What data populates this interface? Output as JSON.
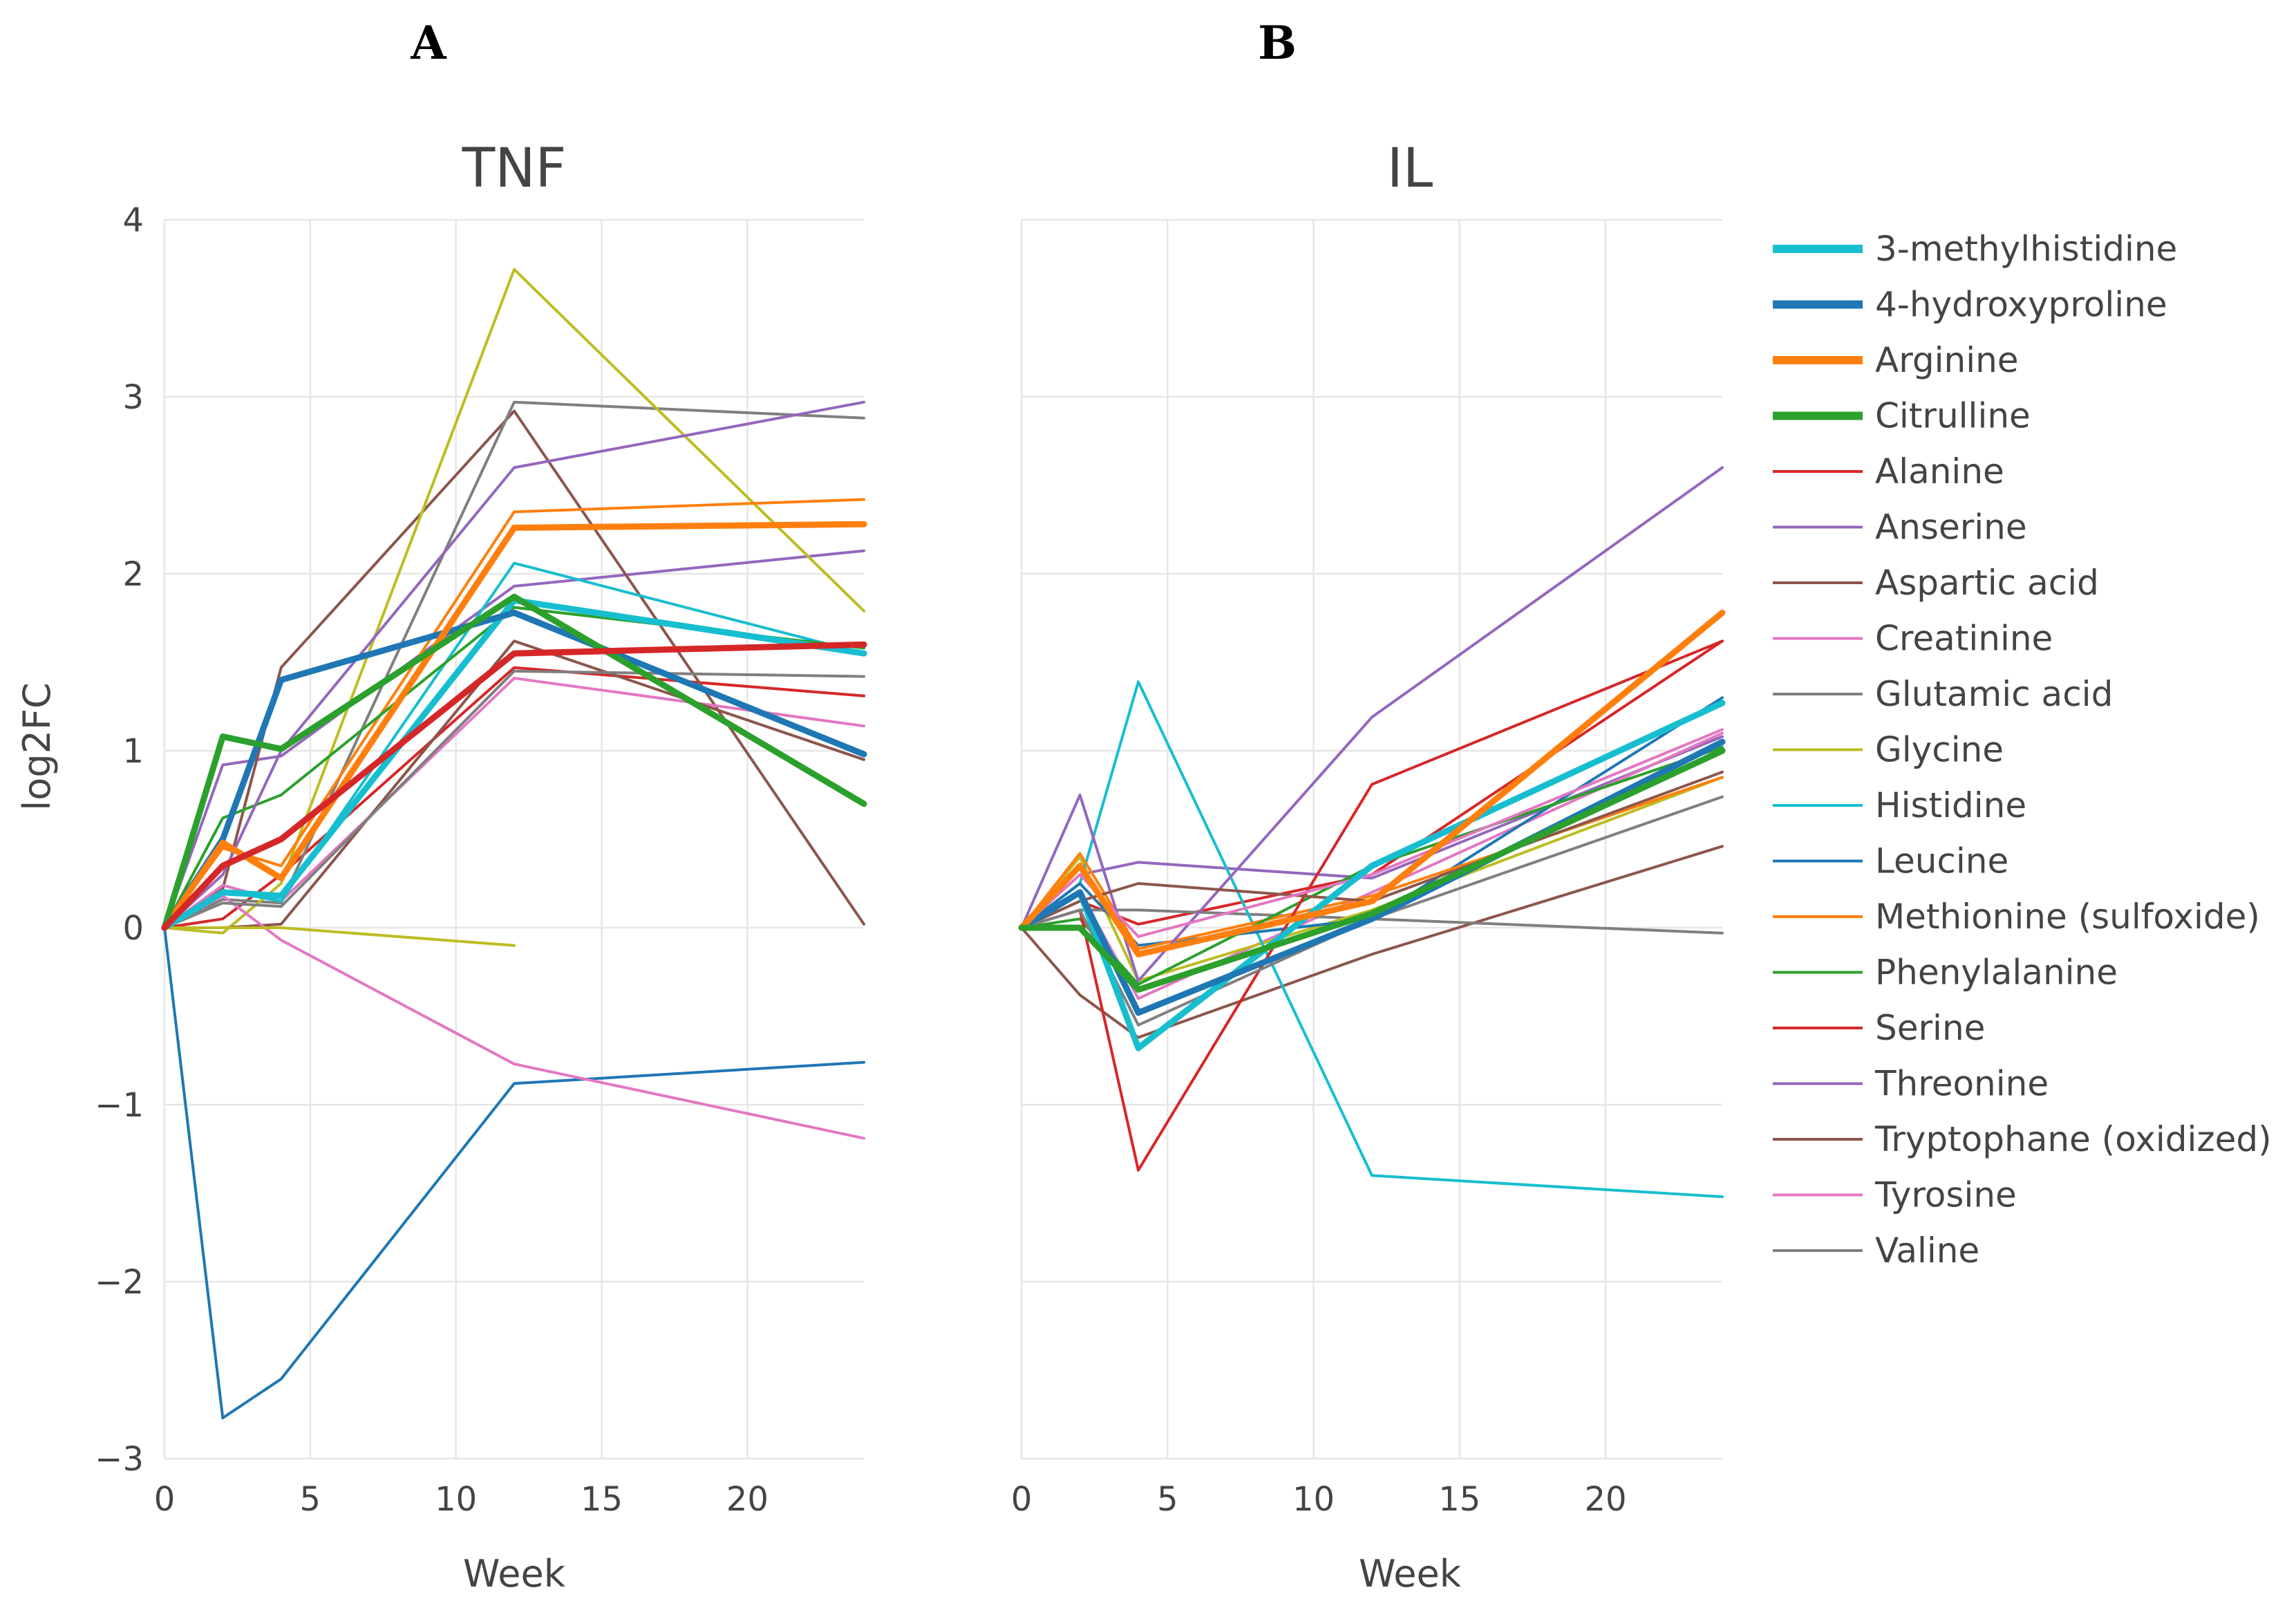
{
  "panels": [
    {
      "letter": "A"
    },
    {
      "letter": "B"
    }
  ],
  "chart_data": [
    {
      "type": "line",
      "title": "TNF",
      "xlabel": "Week",
      "ylabel": "log2FC",
      "xlim": [
        0,
        24
      ],
      "ylim": [
        -3,
        4
      ],
      "xticks": [
        0,
        5,
        10,
        15,
        20
      ],
      "yticks": [
        -3,
        -2,
        -1,
        0,
        1,
        2,
        3,
        4
      ],
      "ytick_labels": [
        "−3",
        "−2",
        "−1",
        "0",
        "1",
        "2",
        "3",
        "4"
      ],
      "grid": true,
      "series": [
        {
          "name": "3-methylhistidine",
          "color": "#17becf",
          "width": 9,
          "x": [
            0,
            2,
            4,
            12,
            24
          ],
          "y": [
            0,
            0.2,
            0.18,
            1.85,
            1.55
          ]
        },
        {
          "name": "4-hydroxyproline",
          "color": "#1f77b4",
          "width": 9,
          "x": [
            0,
            2,
            4,
            12,
            24
          ],
          "y": [
            0,
            0.5,
            1.4,
            1.78,
            0.98
          ]
        },
        {
          "name": "Arginine",
          "color": "#ff7f0e",
          "width": 9,
          "x": [
            0,
            2,
            4,
            12,
            24
          ],
          "y": [
            0,
            0.48,
            0.28,
            2.26,
            2.28
          ]
        },
        {
          "name": "Citrulline",
          "color": "#2ca02c",
          "width": 9,
          "x": [
            0,
            2,
            4,
            12,
            24
          ],
          "y": [
            0,
            1.08,
            1.01,
            1.87,
            0.7
          ]
        },
        {
          "name": "Alanine",
          "color": "#d62728",
          "width": 4,
          "x": [
            0,
            2,
            4,
            12,
            24
          ],
          "y": [
            0,
            0.05,
            0.3,
            1.47,
            1.31
          ]
        },
        {
          "name": "Anserine",
          "color": "#9467bd",
          "width": 4,
          "x": [
            0,
            2,
            4,
            12,
            24
          ],
          "y": [
            0,
            0.92,
            0.97,
            1.93,
            2.13
          ]
        },
        {
          "name": "Aspartic acid",
          "color": "#8c564b",
          "width": 4,
          "x": [
            0,
            2,
            4,
            12,
            24
          ],
          "y": [
            0,
            0.22,
            1.47,
            2.92,
            0.02
          ]
        },
        {
          "name": "Creatinine",
          "color": "#e377c2",
          "width": 4,
          "x": [
            0,
            2,
            4,
            12,
            24
          ],
          "y": [
            0,
            0.24,
            0.15,
            1.41,
            1.14
          ]
        },
        {
          "name": "Glutamic acid",
          "color": "#7f7f7f",
          "width": 4,
          "x": [
            0,
            2,
            4,
            12,
            24
          ],
          "y": [
            0,
            0.16,
            0.14,
            2.97,
            2.88
          ]
        },
        {
          "name": "Glycine",
          "color": "#bcbd22",
          "width": 4,
          "x": [
            0,
            2,
            4,
            12,
            24
          ],
          "y": [
            0,
            -0.03,
            0.25,
            3.72,
            1.79
          ]
        },
        {
          "name": "Histidine",
          "color": "#17becf",
          "width": 4,
          "x": [
            0,
            2,
            4,
            12,
            24
          ],
          "y": [
            0,
            0.21,
            0.15,
            2.06,
            1.55
          ]
        },
        {
          "name": "Leucine",
          "color": "#1f77b4",
          "width": 4,
          "x": [
            0,
            2,
            4,
            12,
            24
          ],
          "y": [
            0,
            -2.77,
            -2.55,
            -0.88,
            -0.76
          ]
        },
        {
          "name": "Methionine (sulfoxide)",
          "color": "#ff7f0e",
          "width": 4,
          "x": [
            0,
            2,
            4,
            12,
            24
          ],
          "y": [
            0,
            0.45,
            0.35,
            2.35,
            2.42
          ]
        },
        {
          "name": "Phenylalanine",
          "color": "#2ca02c",
          "width": 4,
          "x": [
            0,
            2,
            4,
            12,
            24
          ],
          "y": [
            0,
            0.62,
            0.75,
            1.81,
            1.58
          ]
        },
        {
          "name": "Serine",
          "color": "#d62728",
          "width": 9,
          "x": [
            0,
            2,
            4,
            12,
            24
          ],
          "y": [
            0,
            0.35,
            0.5,
            1.55,
            1.6
          ]
        },
        {
          "name": "Threonine",
          "color": "#9467bd",
          "width": 4,
          "x": [
            0,
            2,
            4,
            12,
            24
          ],
          "y": [
            0,
            0.3,
            1.0,
            2.6,
            2.97
          ]
        },
        {
          "name": "Tryptophane (oxidized)",
          "color": "#8c564b",
          "width": 4,
          "x": [
            0,
            2,
            4,
            12,
            24
          ],
          "y": [
            0,
            0.0,
            0.02,
            1.62,
            0.95
          ]
        },
        {
          "name": "Tyrosine",
          "color": "#e377c2",
          "width": 4,
          "x": [
            0,
            2,
            4,
            12,
            24
          ],
          "y": [
            0,
            0.18,
            -0.07,
            -0.77,
            -1.19
          ]
        },
        {
          "name": "Valine",
          "color": "#7f7f7f",
          "width": 4,
          "x": [
            0,
            2,
            4,
            12,
            24
          ],
          "y": [
            0,
            0.14,
            0.12,
            1.45,
            1.42
          ]
        },
        {
          "name": "Glycine",
          "color": "#bcbd22",
          "width": 4,
          "x": [
            0,
            2,
            4,
            12
          ],
          "y": [
            0,
            0.0,
            0.0,
            -0.1
          ]
        }
      ]
    },
    {
      "type": "line",
      "title": "IL",
      "xlabel": "Week",
      "ylabel": "",
      "xlim": [
        0,
        24
      ],
      "ylim": [
        -3,
        4
      ],
      "xticks": [
        0,
        5,
        10,
        15,
        20
      ],
      "grid": true,
      "series": [
        {
          "name": "3-methylhistidine",
          "color": "#17becf",
          "width": 9,
          "x": [
            0,
            2,
            4,
            12,
            24
          ],
          "y": [
            0,
            0.2,
            -0.68,
            0.35,
            1.27
          ]
        },
        {
          "name": "4-hydroxyproline",
          "color": "#1f77b4",
          "width": 9,
          "x": [
            0,
            2,
            4,
            12,
            24
          ],
          "y": [
            0,
            0.2,
            -0.48,
            0.05,
            1.05
          ]
        },
        {
          "name": "Arginine",
          "color": "#ff7f0e",
          "width": 9,
          "x": [
            0,
            2,
            4,
            12,
            24
          ],
          "y": [
            0,
            0.35,
            -0.15,
            0.15,
            1.78
          ]
        },
        {
          "name": "Citrulline",
          "color": "#2ca02c",
          "width": 9,
          "x": [
            0,
            2,
            4,
            12,
            24
          ],
          "y": [
            0,
            0.0,
            -0.35,
            0.08,
            1.0
          ]
        },
        {
          "name": "Alanine",
          "color": "#d62728",
          "width": 4,
          "x": [
            0,
            2,
            4,
            12,
            24
          ],
          "y": [
            0,
            0.15,
            0.02,
            0.3,
            1.62
          ]
        },
        {
          "name": "Anserine",
          "color": "#9467bd",
          "width": 4,
          "x": [
            0,
            2,
            4,
            12,
            24
          ],
          "y": [
            0,
            0.3,
            0.37,
            0.28,
            1.08
          ]
        },
        {
          "name": "Aspartic acid",
          "color": "#8c564b",
          "width": 4,
          "x": [
            0,
            2,
            4,
            12,
            24
          ],
          "y": [
            0,
            -0.38,
            -0.62,
            -0.15,
            0.46
          ]
        },
        {
          "name": "Creatinine",
          "color": "#e377c2",
          "width": 4,
          "x": [
            0,
            2,
            4,
            12,
            24
          ],
          "y": [
            0,
            0.2,
            -0.4,
            0.2,
            1.1
          ]
        },
        {
          "name": "Glutamic acid",
          "color": "#7f7f7f",
          "width": 4,
          "x": [
            0,
            2,
            4,
            12,
            24
          ],
          "y": [
            0,
            0.1,
            0.1,
            0.05,
            -0.03
          ]
        },
        {
          "name": "Glycine",
          "color": "#bcbd22",
          "width": 4,
          "x": [
            0,
            2,
            4,
            12,
            24
          ],
          "y": [
            0,
            0.4,
            -0.3,
            0.1,
            0.85
          ]
        },
        {
          "name": "Histidine",
          "color": "#17becf",
          "width": 4,
          "x": [
            0,
            2,
            4,
            12,
            24
          ],
          "y": [
            0,
            0.25,
            1.39,
            -1.4,
            -1.52
          ]
        },
        {
          "name": "Leucine",
          "color": "#1f77b4",
          "width": 4,
          "x": [
            0,
            2,
            4,
            12,
            24
          ],
          "y": [
            0,
            0.25,
            -0.1,
            0.05,
            1.3
          ]
        },
        {
          "name": "Methionine (sulfoxide)",
          "color": "#ff7f0e",
          "width": 4,
          "x": [
            0,
            2,
            4,
            12,
            24
          ],
          "y": [
            0,
            0.42,
            -0.12,
            0.18,
            0.85
          ]
        },
        {
          "name": "Phenylalanine",
          "color": "#2ca02c",
          "width": 4,
          "x": [
            0,
            2,
            4,
            12,
            24
          ],
          "y": [
            0,
            0.05,
            -0.32,
            0.35,
            1.02
          ]
        },
        {
          "name": "Serine",
          "color": "#d62728",
          "width": 4,
          "x": [
            0,
            2,
            4,
            12,
            24
          ],
          "y": [
            0,
            0.1,
            -1.37,
            0.81,
            1.62
          ]
        },
        {
          "name": "Threonine",
          "color": "#9467bd",
          "width": 4,
          "x": [
            0,
            2,
            4,
            12,
            24
          ],
          "y": [
            0,
            0.75,
            -0.3,
            1.19,
            2.6
          ]
        },
        {
          "name": "Tryptophane (oxidized)",
          "color": "#8c564b",
          "width": 4,
          "x": [
            0,
            2,
            4,
            12,
            24
          ],
          "y": [
            0,
            0.15,
            0.25,
            0.15,
            0.88
          ]
        },
        {
          "name": "Tyrosine",
          "color": "#e377c2",
          "width": 4,
          "x": [
            0,
            2,
            4,
            12,
            24
          ],
          "y": [
            0,
            0.3,
            -0.05,
            0.3,
            1.12
          ]
        },
        {
          "name": "Valine",
          "color": "#7f7f7f",
          "width": 4,
          "x": [
            0,
            2,
            4,
            12,
            24
          ],
          "y": [
            0,
            0.1,
            -0.55,
            0.05,
            0.74
          ]
        }
      ]
    }
  ],
  "legend": {
    "position": "right",
    "items": [
      {
        "label": "3-methylhistidine",
        "color": "#17becf",
        "width": 12
      },
      {
        "label": "4-hydroxyproline",
        "color": "#1f77b4",
        "width": 12
      },
      {
        "label": "Arginine",
        "color": "#ff7f0e",
        "width": 12
      },
      {
        "label": "Citrulline",
        "color": "#2ca02c",
        "width": 12
      },
      {
        "label": "Alanine",
        "color": "#d62728",
        "width": 4
      },
      {
        "label": "Anserine",
        "color": "#9467bd",
        "width": 4
      },
      {
        "label": "Aspartic acid",
        "color": "#8c564b",
        "width": 4
      },
      {
        "label": "Creatinine",
        "color": "#e377c2",
        "width": 4
      },
      {
        "label": "Glutamic acid",
        "color": "#7f7f7f",
        "width": 4
      },
      {
        "label": "Glycine",
        "color": "#bcbd22",
        "width": 4
      },
      {
        "label": "Histidine",
        "color": "#17becf",
        "width": 4
      },
      {
        "label": "Leucine",
        "color": "#1f77b4",
        "width": 4
      },
      {
        "label": "Methionine (sulfoxide)",
        "color": "#ff7f0e",
        "width": 4
      },
      {
        "label": "Phenylalanine",
        "color": "#2ca02c",
        "width": 4
      },
      {
        "label": "Serine",
        "color": "#d62728",
        "width": 4
      },
      {
        "label": "Threonine",
        "color": "#9467bd",
        "width": 4
      },
      {
        "label": "Tryptophane (oxidized)",
        "color": "#8c564b",
        "width": 4
      },
      {
        "label": "Tyrosine",
        "color": "#e377c2",
        "width": 4
      },
      {
        "label": "Valine",
        "color": "#7f7f7f",
        "width": 4
      }
    ]
  }
}
